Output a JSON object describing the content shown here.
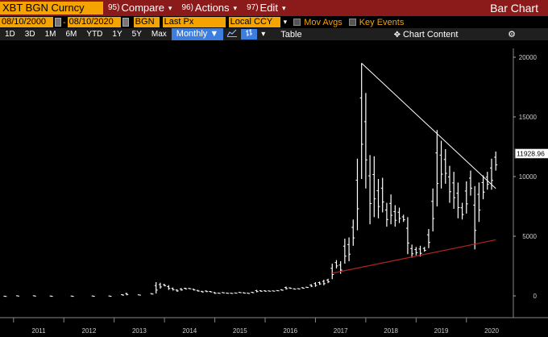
{
  "toolbar": {
    "ticker": "XBT BGN Curncy",
    "compare_num": "95)",
    "compare_label": "Compare",
    "actions_num": "96)",
    "actions_label": "Actions",
    "edit_num": "97)",
    "edit_label": "Edit",
    "chart_title": "Bar Chart"
  },
  "row2": {
    "start_date": "08/10/2000",
    "end_date": "08/10/2020",
    "source": "BGN",
    "field": "Last Px",
    "currency": "Local CCY",
    "mov_avgs": "Mov Avgs",
    "key_events": "Key Events"
  },
  "row3": {
    "periods": [
      "1D",
      "3D",
      "1M",
      "6M",
      "YTD",
      "1Y",
      "5Y",
      "Max"
    ],
    "frequency": "Monthly ▼",
    "table": "Table",
    "chart_content": "Chart Content"
  },
  "colors": {
    "toolbar_bg": "#8b1a1a",
    "accent_orange": "#f4a300",
    "active_blue": "#3c7de0",
    "support_line": "#b22222",
    "resistance_line": "#ffffff"
  },
  "chart_data": {
    "type": "bar",
    "title": "",
    "ylim": [
      -1500,
      21000
    ],
    "yticks": [
      0,
      5000,
      10000,
      15000,
      20000
    ],
    "ytick_labels": [
      "0",
      "5000",
      "10000",
      "15000",
      "20000"
    ],
    "xticks": [
      "2011",
      "2012",
      "2013",
      "2014",
      "2015",
      "2016",
      "2017",
      "2018",
      "2019",
      "2020"
    ],
    "last_price_label": "11928.96",
    "last_price": 11928.96,
    "resistance_line": {
      "start": [
        "2017-12",
        19500
      ],
      "end": [
        "2020-08",
        9000
      ]
    },
    "support_line": {
      "start": [
        "2017-05",
        1900
      ],
      "end": [
        "2020-08",
        4700
      ]
    },
    "bars": [
      {
        "t": "2010-08",
        "lo": 0,
        "hi": 0
      },
      {
        "t": "2010-11",
        "lo": 0,
        "hi": 0
      },
      {
        "t": "2011-02",
        "lo": 0,
        "hi": 30
      },
      {
        "t": "2011-06",
        "lo": 10,
        "hi": 30
      },
      {
        "t": "2011-10",
        "lo": 2,
        "hi": 10
      },
      {
        "t": "2012-03",
        "lo": 4,
        "hi": 6
      },
      {
        "t": "2012-08",
        "lo": 8,
        "hi": 14
      },
      {
        "t": "2012-12",
        "lo": 12,
        "hi": 14
      },
      {
        "t": "2013-03",
        "lo": 30,
        "hi": 140
      },
      {
        "t": "2013-04",
        "lo": 50,
        "hi": 260
      },
      {
        "t": "2013-07",
        "lo": 70,
        "hi": 110
      },
      {
        "t": "2013-10",
        "lo": 120,
        "hi": 220
      },
      {
        "t": "2013-11",
        "lo": 200,
        "hi": 1150
      },
      {
        "t": "2013-12",
        "lo": 600,
        "hi": 1100
      },
      {
        "t": "2014-01",
        "lo": 800,
        "hi": 1000
      },
      {
        "t": "2014-02",
        "lo": 500,
        "hi": 900
      },
      {
        "t": "2014-03",
        "lo": 450,
        "hi": 700
      },
      {
        "t": "2014-04",
        "lo": 350,
        "hi": 550
      },
      {
        "t": "2014-05",
        "lo": 430,
        "hi": 650
      },
      {
        "t": "2014-06",
        "lo": 550,
        "hi": 680
      },
      {
        "t": "2014-07",
        "lo": 570,
        "hi": 650
      },
      {
        "t": "2014-08",
        "lo": 450,
        "hi": 600
      },
      {
        "t": "2014-09",
        "lo": 360,
        "hi": 500
      },
      {
        "t": "2014-10",
        "lo": 290,
        "hi": 420
      },
      {
        "t": "2014-11",
        "lo": 320,
        "hi": 450
      },
      {
        "t": "2014-12",
        "lo": 300,
        "hi": 400
      },
      {
        "t": "2015-01",
        "lo": 170,
        "hi": 320
      },
      {
        "t": "2015-02",
        "lo": 210,
        "hi": 260
      },
      {
        "t": "2015-03",
        "lo": 240,
        "hi": 300
      },
      {
        "t": "2015-04",
        "lo": 220,
        "hi": 260
      },
      {
        "t": "2015-05",
        "lo": 230,
        "hi": 250
      },
      {
        "t": "2015-06",
        "lo": 220,
        "hi": 270
      },
      {
        "t": "2015-07",
        "lo": 260,
        "hi": 320
      },
      {
        "t": "2015-08",
        "lo": 200,
        "hi": 290
      },
      {
        "t": "2015-09",
        "lo": 225,
        "hi": 250
      },
      {
        "t": "2015-10",
        "lo": 240,
        "hi": 330
      },
      {
        "t": "2015-11",
        "lo": 300,
        "hi": 500
      },
      {
        "t": "2015-12",
        "lo": 350,
        "hi": 470
      },
      {
        "t": "2016-01",
        "lo": 360,
        "hi": 460
      },
      {
        "t": "2016-02",
        "lo": 370,
        "hi": 440
      },
      {
        "t": "2016-03",
        "lo": 400,
        "hi": 440
      },
      {
        "t": "2016-04",
        "lo": 410,
        "hi": 470
      },
      {
        "t": "2016-05",
        "lo": 440,
        "hi": 550
      },
      {
        "t": "2016-06",
        "lo": 530,
        "hi": 780
      },
      {
        "t": "2016-07",
        "lo": 600,
        "hi": 700
      },
      {
        "t": "2016-08",
        "lo": 540,
        "hi": 620
      },
      {
        "t": "2016-09",
        "lo": 590,
        "hi": 630
      },
      {
        "t": "2016-10",
        "lo": 610,
        "hi": 720
      },
      {
        "t": "2016-11",
        "lo": 690,
        "hi": 750
      },
      {
        "t": "2016-12",
        "lo": 740,
        "hi": 980
      },
      {
        "t": "2017-01",
        "lo": 760,
        "hi": 1150
      },
      {
        "t": "2017-02",
        "lo": 920,
        "hi": 1200
      },
      {
        "t": "2017-03",
        "lo": 890,
        "hi": 1350
      },
      {
        "t": "2017-04",
        "lo": 1070,
        "hi": 1440
      },
      {
        "t": "2017-05",
        "lo": 1400,
        "hi": 2700
      },
      {
        "t": "2017-06",
        "lo": 2300,
        "hi": 3000
      },
      {
        "t": "2017-07",
        "lo": 1850,
        "hi": 2900
      },
      {
        "t": "2017-08",
        "lo": 2700,
        "hi": 4800
      },
      {
        "t": "2017-09",
        "lo": 2900,
        "hi": 4900
      },
      {
        "t": "2017-10",
        "lo": 4200,
        "hi": 6400
      },
      {
        "t": "2017-11",
        "lo": 5500,
        "hi": 11500
      },
      {
        "t": "2017-12",
        "lo": 9800,
        "hi": 19500
      },
      {
        "t": "2018-01",
        "lo": 9000,
        "hi": 17000
      },
      {
        "t": "2018-02",
        "lo": 6000,
        "hi": 11800
      },
      {
        "t": "2018-03",
        "lo": 6600,
        "hi": 11700
      },
      {
        "t": "2018-04",
        "lo": 6500,
        "hi": 9800
      },
      {
        "t": "2018-05",
        "lo": 7000,
        "hi": 9900
      },
      {
        "t": "2018-06",
        "lo": 5800,
        "hi": 7800
      },
      {
        "t": "2018-07",
        "lo": 6000,
        "hi": 8500
      },
      {
        "t": "2018-08",
        "lo": 5800,
        "hi": 7600
      },
      {
        "t": "2018-09",
        "lo": 6100,
        "hi": 7400
      },
      {
        "t": "2018-10",
        "lo": 6200,
        "hi": 6800
      },
      {
        "t": "2018-11",
        "lo": 3500,
        "hi": 6600
      },
      {
        "t": "2018-12",
        "lo": 3200,
        "hi": 4300
      },
      {
        "t": "2019-01",
        "lo": 3400,
        "hi": 4100
      },
      {
        "t": "2019-02",
        "lo": 3300,
        "hi": 4200
      },
      {
        "t": "2019-03",
        "lo": 3700,
        "hi": 4100
      },
      {
        "t": "2019-04",
        "lo": 4000,
        "hi": 5600
      },
      {
        "t": "2019-05",
        "lo": 5400,
        "hi": 9000
      },
      {
        "t": "2019-06",
        "lo": 7500,
        "hi": 13900
      },
      {
        "t": "2019-07",
        "lo": 9000,
        "hi": 13000
      },
      {
        "t": "2019-08",
        "lo": 9400,
        "hi": 12300
      },
      {
        "t": "2019-09",
        "lo": 7800,
        "hi": 10900
      },
      {
        "t": "2019-10",
        "lo": 7300,
        "hi": 10400
      },
      {
        "t": "2019-11",
        "lo": 6500,
        "hi": 9500
      },
      {
        "t": "2019-12",
        "lo": 6400,
        "hi": 7800
      },
      {
        "t": "2020-01",
        "lo": 6900,
        "hi": 9600
      },
      {
        "t": "2020-02",
        "lo": 8400,
        "hi": 10500
      },
      {
        "t": "2020-03",
        "lo": 3900,
        "hi": 9200
      },
      {
        "t": "2020-04",
        "lo": 6200,
        "hi": 9500
      },
      {
        "t": "2020-05",
        "lo": 8100,
        "hi": 10100
      },
      {
        "t": "2020-06",
        "lo": 8900,
        "hi": 10400
      },
      {
        "t": "2020-07",
        "lo": 8900,
        "hi": 11500
      },
      {
        "t": "2020-08",
        "lo": 10500,
        "hi": 12100
      }
    ]
  }
}
